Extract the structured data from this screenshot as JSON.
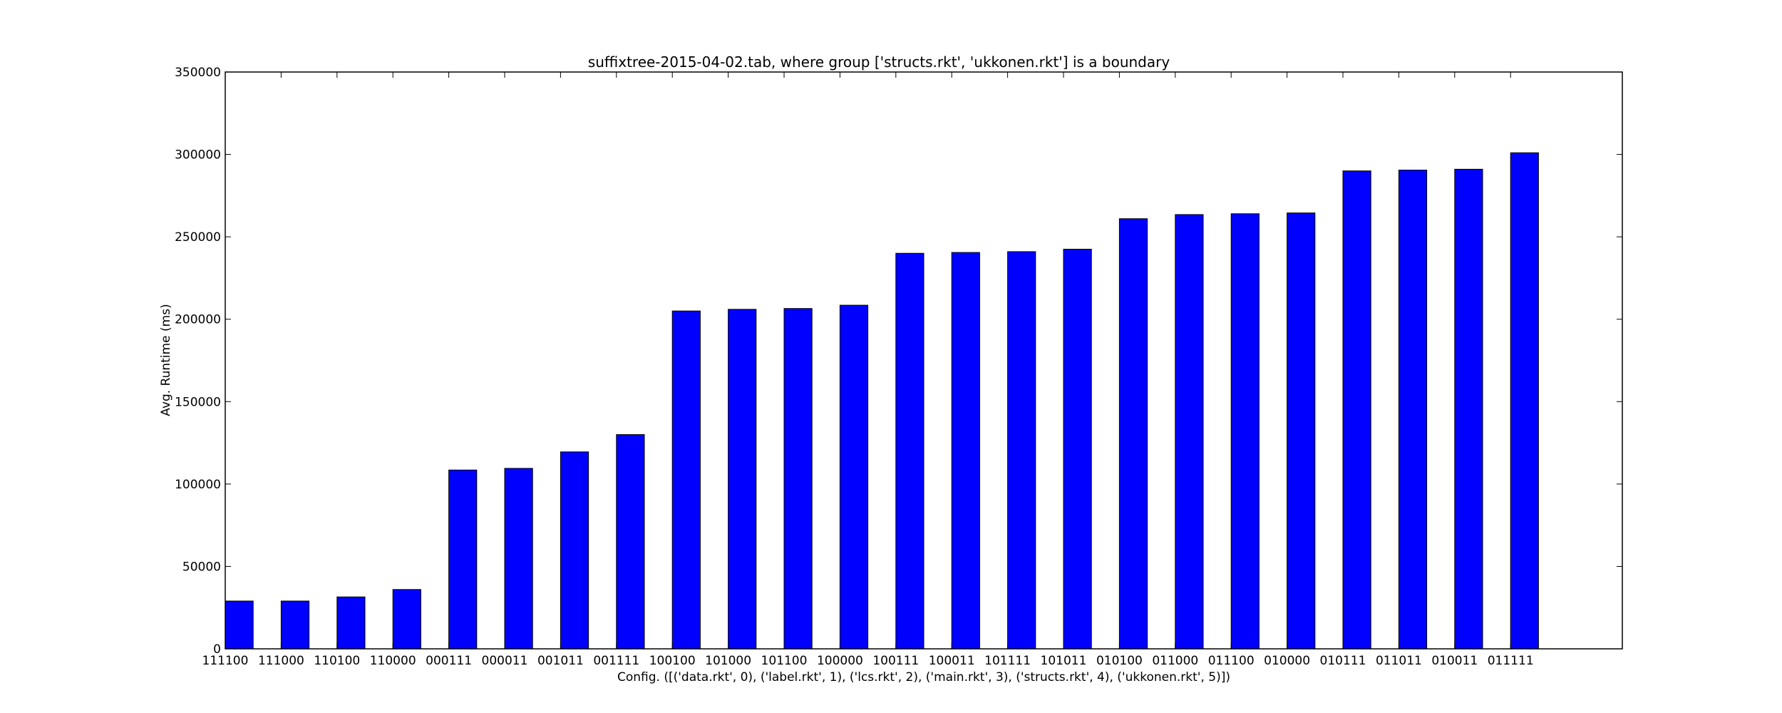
{
  "chart_data": {
    "type": "bar",
    "title": "suffixtree-2015-04-02.tab, where group ['structs.rkt', 'ukkonen.rkt'] is a boundary",
    "xlabel": "Config. ([('data.rkt', 0), ('label.rkt', 1), ('lcs.rkt', 2), ('main.rkt', 3), ('structs.rkt', 4), ('ukkonen.rkt', 5)])",
    "ylabel": "Avg. Runtime (ms)",
    "ylim": [
      0,
      350000
    ],
    "yticks": [
      0,
      50000,
      100000,
      150000,
      200000,
      250000,
      300000,
      350000
    ],
    "ytick_labels": [
      "0",
      "50000",
      "100000",
      "150000",
      "200000",
      "250000",
      "300000",
      "350000"
    ],
    "grid": false,
    "bar_color": "#0000ff",
    "categories": [
      "111100",
      "111000",
      "110100",
      "110000",
      "000111",
      "000011",
      "001011",
      "001111",
      "100100",
      "101000",
      "101100",
      "100000",
      "100111",
      "100011",
      "101111",
      "101011",
      "010100",
      "011000",
      "011100",
      "010000",
      "010111",
      "011011",
      "010011",
      "011111"
    ],
    "values": [
      29000,
      29000,
      31500,
      36000,
      108500,
      109500,
      119500,
      130000,
      205000,
      206000,
      206500,
      208500,
      240000,
      240500,
      241000,
      242500,
      261000,
      263500,
      264000,
      264500,
      290000,
      290500,
      291000,
      301000
    ]
  }
}
